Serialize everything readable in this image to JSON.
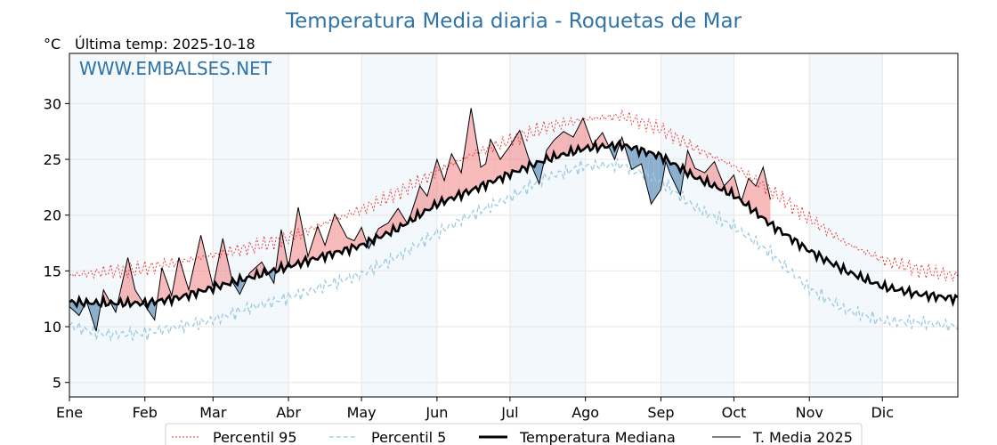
{
  "header": {
    "title": "Temperatura Media diaria - Roquetas de Mar",
    "unit": "°C",
    "last_temp": "Última temp: 2025-10-18",
    "watermark": "WWW.EMBALSES.NET"
  },
  "colors": {
    "title": "#2f73a8",
    "p95": "#e8322c",
    "p5": "#9ccae0",
    "median": "#000000",
    "year": "#000000",
    "above_fill": "#f08080",
    "below_fill": "#5b8db8",
    "month_band": "#f3f8fc"
  },
  "chart_data": {
    "type": "line",
    "ylim": [
      3.7,
      34.5
    ],
    "xlim": [
      1,
      366
    ],
    "grid": true,
    "legend_position": "bottom-center",
    "yticks": [
      5,
      10,
      15,
      20,
      25,
      30
    ],
    "months": [
      "Ene",
      "Feb",
      "Mar",
      "Abr",
      "May",
      "Jun",
      "Jul",
      "Ago",
      "Sep",
      "Oct",
      "Nov",
      "Dic"
    ],
    "month_start_days": [
      1,
      32,
      60,
      91,
      121,
      152,
      182,
      213,
      244,
      274,
      305,
      335
    ],
    "median_anchors": {
      "day": [
        1,
        15,
        32,
        46,
        60,
        75,
        91,
        105,
        121,
        136,
        152,
        166,
        182,
        197,
        213,
        228,
        244,
        258,
        274,
        289,
        305,
        320,
        335,
        350,
        366
      ],
      "value": [
        12.2,
        12.1,
        12.1,
        12.6,
        13.5,
        14.4,
        15.4,
        16.3,
        17.3,
        18.8,
        21.0,
        22.2,
        23.7,
        25.0,
        26.0,
        26.3,
        25.3,
        23.4,
        21.8,
        19.2,
        16.8,
        15.0,
        13.6,
        12.9,
        12.5
      ]
    },
    "p95_anchors": {
      "day": [
        1,
        15,
        32,
        46,
        60,
        75,
        91,
        105,
        121,
        136,
        152,
        166,
        182,
        197,
        213,
        228,
        244,
        258,
        274,
        289,
        305,
        320,
        335,
        350,
        366
      ],
      "value": [
        14.6,
        14.9,
        15.2,
        15.8,
        16.4,
        17.1,
        17.9,
        19.2,
        20.5,
        22.0,
        23.9,
        25.4,
        26.7,
        27.9,
        28.6,
        28.9,
        27.7,
        26.0,
        24.4,
        22.2,
        19.7,
        17.5,
        16.0,
        15.1,
        14.5
      ]
    },
    "p5_anchors": {
      "day": [
        1,
        15,
        32,
        46,
        60,
        75,
        91,
        105,
        121,
        136,
        152,
        166,
        182,
        197,
        213,
        228,
        244,
        258,
        274,
        289,
        305,
        320,
        335,
        350,
        366
      ],
      "value": [
        10.1,
        9.3,
        9.4,
        10.0,
        10.6,
        11.7,
        12.6,
        13.6,
        14.7,
        16.3,
        18.4,
        20.0,
        21.6,
        23.4,
        24.4,
        24.5,
        23.0,
        20.7,
        19.0,
        16.6,
        13.4,
        11.5,
        10.5,
        10.4,
        10.0
      ]
    },
    "year_2025_anchors": {
      "day": [
        1,
        5,
        8,
        12,
        15,
        20,
        25,
        28,
        32,
        36,
        39,
        43,
        46,
        50,
        55,
        60,
        64,
        68,
        71,
        75,
        80,
        85,
        88,
        91,
        95,
        99,
        103,
        106,
        110,
        115,
        118,
        121,
        124,
        128,
        132,
        136,
        140,
        145,
        148,
        152,
        155,
        158,
        162,
        166,
        170,
        172,
        174,
        178,
        182,
        186,
        190,
        194,
        197,
        200,
        204,
        208,
        212,
        216,
        220,
        225,
        228,
        232,
        236,
        240,
        244,
        246,
        248,
        252,
        255,
        258,
        262,
        266,
        270,
        274,
        277,
        280,
        283,
        286,
        289
      ],
      "value": [
        11.8,
        11.0,
        12.3,
        9.6,
        13.3,
        11.3,
        16.2,
        13.3,
        11.9,
        10.6,
        15.3,
        12.8,
        16.2,
        13.3,
        18.2,
        13.6,
        17.9,
        14.0,
        12.9,
        14.8,
        15.8,
        13.9,
        18.7,
        15.3,
        20.7,
        16.3,
        19.0,
        17.3,
        20.1,
        18.0,
        17.7,
        18.9,
        17.0,
        18.8,
        19.3,
        20.6,
        19.2,
        22.6,
        21.7,
        25.0,
        23.1,
        25.5,
        23.8,
        29.6,
        24.3,
        24.6,
        26.8,
        25.0,
        26.2,
        27.6,
        24.9,
        22.8,
        25.8,
        26.7,
        27.5,
        27.0,
        28.7,
        26.3,
        27.4,
        25.0,
        27.0,
        24.1,
        24.6,
        21.0,
        22.3,
        24.8,
        23.6,
        21.8,
        25.8,
        24.2,
        23.8,
        24.8,
        22.6,
        23.6,
        21.2,
        23.3,
        22.6,
        24.3,
        21.4
      ]
    }
  },
  "legend": {
    "p95": "Percentil 95",
    "p5": "Percentil 5",
    "median": "Temperatura Mediana",
    "year": "T. Media 2025"
  }
}
